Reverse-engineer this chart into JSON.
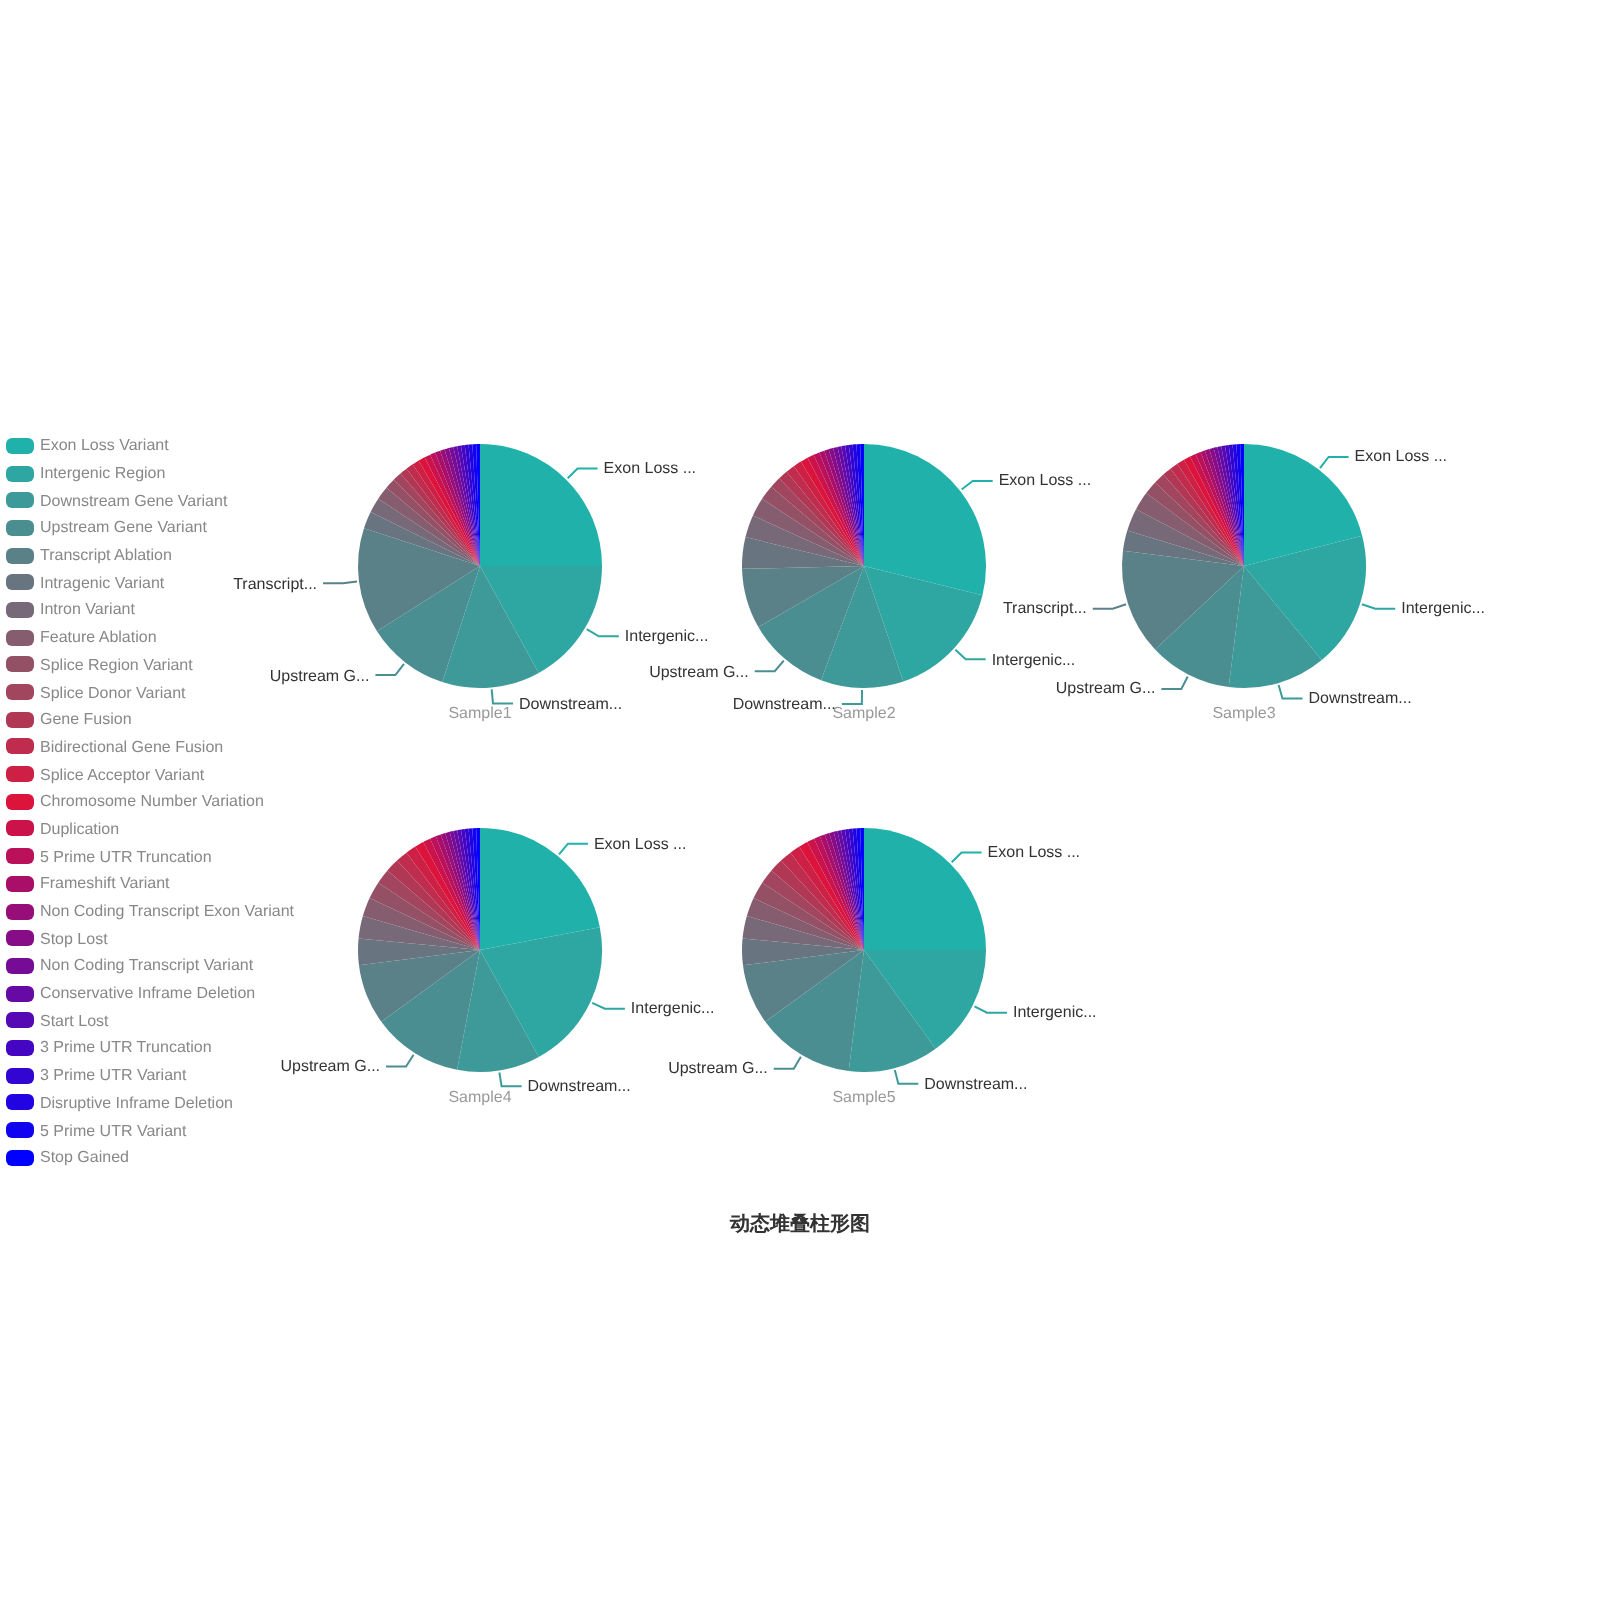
{
  "chart_data": {
    "type": "pie",
    "title": "动态堆叠柱形图",
    "legend": "left",
    "categories": [
      "Exon Loss Variant",
      "Intergenic Region",
      "Downstream Gene Variant",
      "Upstream Gene Variant",
      "Transcript Ablation",
      "Intragenic Variant",
      "Intron Variant",
      "Feature Ablation",
      "Splice Region Variant",
      "Splice Donor Variant",
      "Gene Fusion",
      "Bidirectional Gene Fusion",
      "Splice Acceptor Variant",
      "Chromosome Number Variation",
      "Duplication",
      "5 Prime UTR Truncation",
      "Frameshift Variant",
      "Non Coding Transcript Exon Variant",
      "Stop Lost",
      "Non Coding Transcript Variant",
      "Conservative Inframe Deletion",
      "Start Lost",
      "3 Prime UTR Truncation",
      "3 Prime UTR Variant",
      "Disruptive Inframe Deletion",
      "5 Prime UTR Variant",
      "Stop Gained"
    ],
    "colors": [
      "#20b2aa",
      "#2ea6a2",
      "#3d9a99",
      "#4b8e91",
      "#5a8188",
      "#687580",
      "#776977",
      "#855d6f",
      "#945166",
      "#a2455e",
      "#b13855",
      "#bf2c4d",
      "#ce2044",
      "#dc143c",
      "#cb124b",
      "#ba115a",
      "#a90f69",
      "#980e78",
      "#870c87",
      "#760b96",
      "#6609a5",
      "#5508b4",
      "#4406c3",
      "#3305d2",
      "#2203e1",
      "#1102f0",
      "#0000ff"
    ],
    "series": [
      {
        "name": "Sample1",
        "values": [
          25,
          17,
          13,
          11,
          14,
          2.3,
          2,
          1.8,
          1.4,
          1.2,
          1,
          1,
          0.9,
          0.9,
          0.8,
          0.7,
          0.7,
          0.6,
          0.6,
          0.6,
          0.5,
          0.5,
          0.5,
          0.5,
          0.5,
          0.5,
          0.5
        ],
        "value_labels": [
          "Exon Loss ...",
          "Intergenic...",
          "Downstream...",
          "Upstream G...",
          "Transcript...",
          null,
          null,
          null,
          null,
          null,
          null,
          null,
          null,
          null,
          null,
          null,
          null,
          null,
          null,
          null,
          null,
          null,
          null,
          null,
          null,
          null,
          null
        ]
      },
      {
        "name": "Sample2",
        "values": [
          29,
          16,
          11,
          11,
          8,
          4.2,
          3,
          2.5,
          2,
          1.5,
          1.3,
          1.2,
          1.1,
          1,
          0.9,
          0.8,
          0.7,
          0.6,
          0.6,
          0.6,
          0.5,
          0.5,
          0.5,
          0.5,
          0.5,
          0.5,
          0.5
        ],
        "value_labels": [
          "Exon Loss ...",
          "Intergenic...",
          "Downstream...",
          "Upstream G...",
          null,
          null,
          null,
          null,
          null,
          null,
          null,
          null,
          null,
          null,
          null,
          null,
          null,
          null,
          null,
          null,
          null,
          null,
          null,
          null,
          null,
          null,
          null
        ]
      },
      {
        "name": "Sample3",
        "values": [
          21,
          18,
          13,
          11,
          14,
          2.7,
          3,
          2.5,
          1.8,
          1.5,
          1.2,
          1.1,
          1,
          0.9,
          0.8,
          0.7,
          0.6,
          0.6,
          0.6,
          0.5,
          0.5,
          0.5,
          0.5,
          0.5,
          0.5,
          0.5,
          0.5
        ],
        "value_labels": [
          "Exon Loss ...",
          "Intergenic...",
          "Downstream...",
          "Upstream G...",
          "Transcript...",
          null,
          null,
          null,
          null,
          null,
          null,
          null,
          null,
          null,
          null,
          null,
          null,
          null,
          null,
          null,
          null,
          null,
          null,
          null,
          null,
          null,
          null
        ]
      },
      {
        "name": "Sample4",
        "values": [
          22,
          20,
          11,
          12,
          8,
          3.5,
          3,
          2.5,
          2.3,
          2,
          1.8,
          1.6,
          1.4,
          1.2,
          1,
          0.8,
          0.7,
          0.6,
          0.6,
          0.5,
          0.5,
          0.5,
          0.5,
          0.5,
          0.5,
          0.5,
          0.5
        ],
        "value_labels": [
          "Exon Loss ...",
          "Intergenic...",
          "Downstream...",
          "Upstream G...",
          null,
          null,
          null,
          null,
          null,
          null,
          null,
          null,
          null,
          null,
          null,
          null,
          null,
          null,
          null,
          null,
          null,
          null,
          null,
          null,
          null,
          null,
          null
        ]
      },
      {
        "name": "Sample5",
        "values": [
          25,
          15,
          12,
          13,
          8,
          3.5,
          3,
          2.5,
          2.3,
          2,
          1.8,
          1.6,
          1.4,
          1.2,
          1,
          0.8,
          0.7,
          0.6,
          0.6,
          0.5,
          0.5,
          0.5,
          0.5,
          0.5,
          0.5,
          0.5,
          0.5
        ],
        "value_labels": [
          "Exon Loss ...",
          "Intergenic...",
          "Downstream...",
          "Upstream G...",
          null,
          null,
          null,
          null,
          null,
          null,
          null,
          null,
          null,
          null,
          null,
          null,
          null,
          null,
          null,
          null,
          null,
          null,
          null,
          null,
          null,
          null,
          null
        ]
      }
    ]
  }
}
